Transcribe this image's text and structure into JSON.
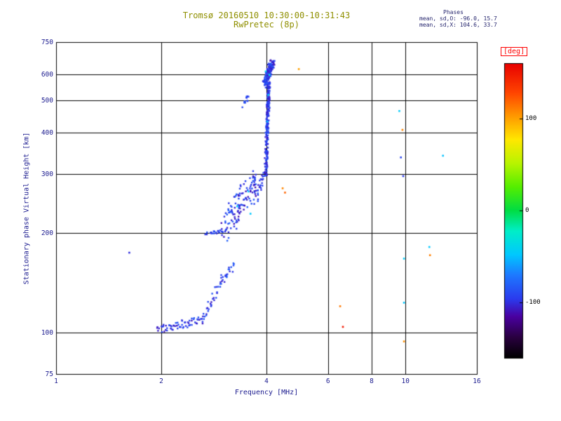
{
  "title": {
    "line1": "Tromsø 20160510 10:30:00-10:31:43",
    "line2": "RwPretec (8p)"
  },
  "stats": {
    "header": "Phases",
    "line_o": "mean, sd,O: -96.0, 15.7",
    "line_x": "mean, sd,X: 104.6, 33.7"
  },
  "axes": {
    "xlabel": "Frequency [MHz]",
    "ylabel": "Stationary phase Virtual Height [km]",
    "x_range": [
      1,
      16
    ],
    "y_range": [
      75,
      750
    ],
    "x_scale": "log",
    "y_scale": "log",
    "x_ticks": [
      1,
      2,
      4,
      6,
      8,
      10,
      16
    ],
    "x_grid": [
      2,
      4,
      6,
      8,
      10
    ],
    "y_ticks": [
      75,
      100,
      200,
      300,
      400,
      500,
      600,
      750
    ],
    "y_grid": [
      100,
      200,
      300,
      400,
      500,
      600
    ]
  },
  "colorbar": {
    "label": "[deg]",
    "ticks": [
      100,
      0,
      -100
    ],
    "range": [
      -160,
      160
    ],
    "stops": [
      [
        0.0,
        "#000000"
      ],
      [
        0.07,
        "#2a0040"
      ],
      [
        0.14,
        "#4a00a0"
      ],
      [
        0.2,
        "#2b3bee"
      ],
      [
        0.28,
        "#1e78ff"
      ],
      [
        0.35,
        "#00c8ff"
      ],
      [
        0.43,
        "#00eec8"
      ],
      [
        0.5,
        "#00dd44"
      ],
      [
        0.58,
        "#55ee00"
      ],
      [
        0.66,
        "#b8f400"
      ],
      [
        0.74,
        "#ffe800"
      ],
      [
        0.82,
        "#ff9900"
      ],
      [
        0.9,
        "#ff4400"
      ],
      [
        1.0,
        "#e80000"
      ]
    ]
  },
  "colors": {
    "title_text": "#8f8f00",
    "axis_text": "#1c1c8f",
    "stats_text": "#26266e",
    "colorbar_text": "#000000",
    "deg_label": "#ff0000",
    "frame": "#000000",
    "background": "#ffffff"
  },
  "chart_data": {
    "type": "scatter",
    "title": "Tromsø 20160510 10:30:00-10:31:43 — RwPretec (8p)",
    "xlabel": "Frequency [MHz]",
    "ylabel": "Stationary phase Virtual Height [km]",
    "xlim": [
      1,
      16
    ],
    "ylim": [
      75,
      750
    ],
    "xscale": "log",
    "yscale": "log",
    "color_variable": "phase [deg]",
    "color_range": [
      -160,
      160
    ],
    "trace_segments": [
      {
        "name": "E-layer-flat",
        "f": [
          1.95,
          2.62
        ],
        "h": [
          102,
          109
        ],
        "n": 60,
        "h_jitter": 3,
        "f_jitter": 0.004,
        "phase": -96,
        "phase_spread": 12
      },
      {
        "name": "E-layer-rise",
        "f": [
          2.62,
          3.02
        ],
        "h": [
          109,
          147
        ],
        "n": 36,
        "h_jitter": 5,
        "f_jitter": 0.004,
        "phase": -96,
        "phase_spread": 12
      },
      {
        "name": "E-layer-top",
        "f": [
          3.02,
          3.24
        ],
        "h": [
          145,
          159
        ],
        "n": 16,
        "h_jitter": 4,
        "f_jitter": 0.004,
        "phase": -92,
        "phase_spread": 12
      },
      {
        "name": "F-base-line",
        "f": [
          2.68,
          3.08
        ],
        "h": [
          198,
          203
        ],
        "n": 26,
        "h_jitter": 2,
        "f_jitter": 0.004,
        "phase": -96,
        "phase_spread": 10
      },
      {
        "name": "F-lower-scatter",
        "f": [
          3.05,
          3.8
        ],
        "h": [
          208,
          288
        ],
        "n": 130,
        "h_jitter": 24,
        "f_jitter": 0.015,
        "phase": -95,
        "phase_spread": 16
      },
      {
        "name": "F-rise",
        "f": [
          3.78,
          4.0
        ],
        "h": [
          258,
          305
        ],
        "n": 20,
        "h_jitter": 12,
        "f_jitter": 0.006,
        "phase": -96,
        "phase_spread": 12
      },
      {
        "name": "F-column",
        "f": [
          3.98,
          4.07
        ],
        "h": [
          300,
          562
        ],
        "n": 200,
        "h_jitter": 10,
        "f_jitter": 0.004,
        "phase": -96,
        "phase_spread": 12
      },
      {
        "name": "F-column-top",
        "f": [
          3.95,
          4.16
        ],
        "h": [
          558,
          652
        ],
        "n": 150,
        "h_jitter": 16,
        "f_jitter": 0.007,
        "phase": -95,
        "phase_spread": 14
      },
      {
        "name": "F-echo-blob",
        "f": [
          3.44,
          3.56
        ],
        "h": [
          482,
          522
        ],
        "n": 14,
        "h_jitter": 8,
        "f_jitter": 0.005,
        "phase": -90,
        "phase_spread": 10
      }
    ],
    "outlier_points": [
      [
        1.62,
        174,
        -100
      ],
      [
        3.3,
        240,
        -46
      ],
      [
        3.55,
        266,
        -50
      ],
      [
        3.6,
        228,
        -48
      ],
      [
        4.02,
        432,
        -52
      ],
      [
        4.05,
        520,
        -46
      ],
      [
        3.98,
        612,
        -40
      ],
      [
        4.08,
        598,
        -32
      ],
      [
        4.45,
        272,
        108
      ],
      [
        4.52,
        264,
        118
      ],
      [
        4.95,
        622,
        100
      ],
      [
        6.5,
        120,
        112
      ],
      [
        6.62,
        104,
        148
      ],
      [
        9.6,
        465,
        -46
      ],
      [
        9.8,
        408,
        108
      ],
      [
        9.7,
        337,
        -92
      ],
      [
        9.85,
        296,
        -96
      ],
      [
        9.9,
        167,
        -45
      ],
      [
        9.9,
        123,
        -48
      ],
      [
        9.9,
        94,
        105
      ],
      [
        11.7,
        181,
        -48
      ],
      [
        11.75,
        171,
        110
      ],
      [
        12.8,
        341,
        -50
      ]
    ]
  }
}
